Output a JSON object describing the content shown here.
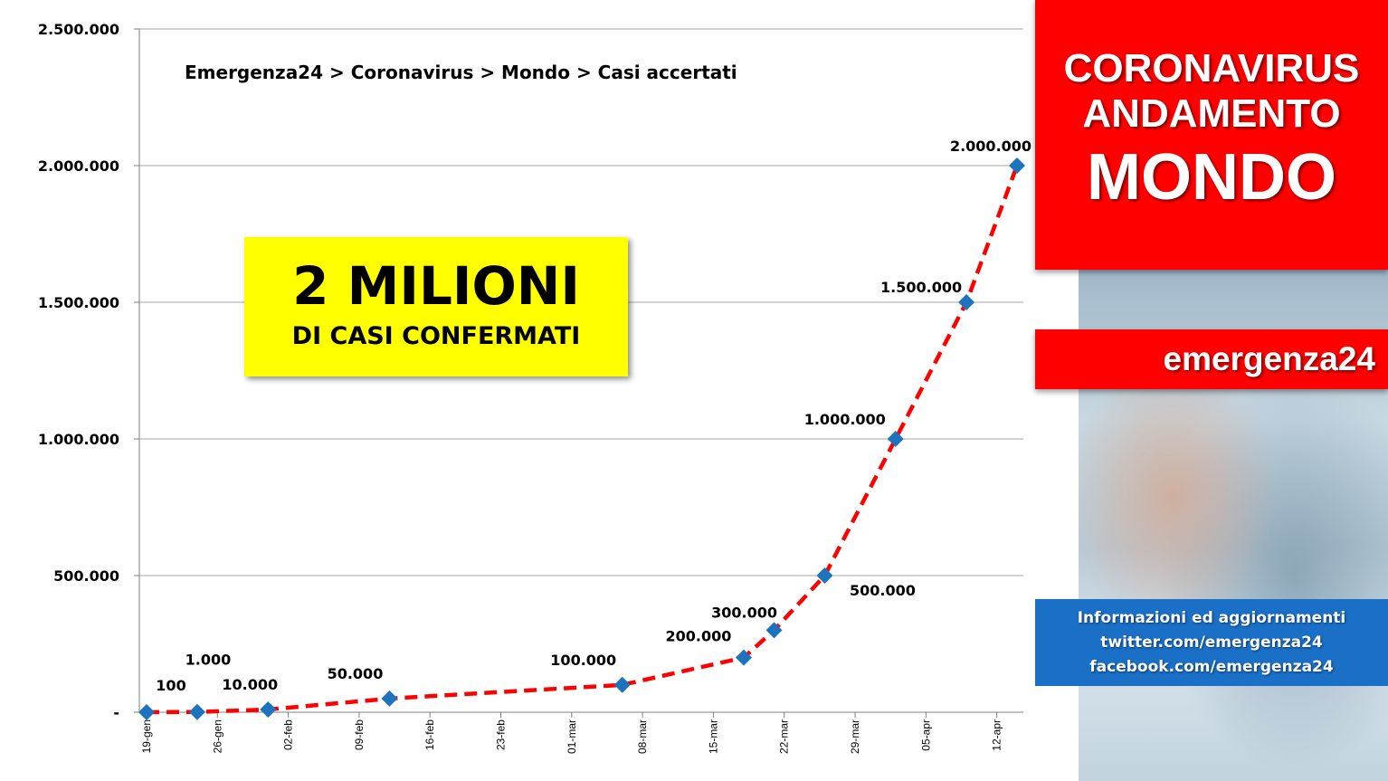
{
  "breadcrumb": "Emergenza24 > Coronavirus >  Mondo > Casi accertati",
  "highlight": {
    "big": "2 MILIONI",
    "small": "DI CASI CONFERMATI"
  },
  "side": {
    "title_line1": "CORONAVIRUS",
    "title_line2": "ANDAMENTO",
    "title_line3": "MONDO",
    "brand": "emergenza24",
    "info": [
      "Informazioni ed aggiornamenti",
      "twitter.com/emergenza24",
      "facebook.com/emergenza24"
    ]
  },
  "colors": {
    "line": "#ff0000",
    "marker": "#1e73be",
    "grid": "#a6a6a6",
    "highlight": "#ffff00",
    "panel": "#ff0000",
    "info": "#1a6fc6"
  },
  "chart_data": {
    "type": "line",
    "title": "",
    "xlabel": "",
    "ylabel": "",
    "ylim": [
      0,
      2500000
    ],
    "grid": true,
    "y_ticks": [
      {
        "value": 0,
        "label": "-"
      },
      {
        "value": 500000,
        "label": "500.000"
      },
      {
        "value": 1000000,
        "label": "1.000.000"
      },
      {
        "value": 1500000,
        "label": "1.500.000"
      },
      {
        "value": 2000000,
        "label": "2.000.000"
      },
      {
        "value": 2500000,
        "label": "2.500.000"
      }
    ],
    "x_range_days": [
      0,
      87
    ],
    "x_ticks": [
      {
        "day": 0,
        "label": "19-gen"
      },
      {
        "day": 7,
        "label": "26-gen"
      },
      {
        "day": 14,
        "label": "02-feb"
      },
      {
        "day": 21,
        "label": "09-feb"
      },
      {
        "day": 28,
        "label": "16-feb"
      },
      {
        "day": 35,
        "label": "23-feb"
      },
      {
        "day": 42,
        "label": "01-mar"
      },
      {
        "day": 49,
        "label": "08-mar"
      },
      {
        "day": 56,
        "label": "15-mar"
      },
      {
        "day": 63,
        "label": "22-mar"
      },
      {
        "day": 70,
        "label": "29-mar"
      },
      {
        "day": 77,
        "label": "05-apr"
      },
      {
        "day": 84,
        "label": "12-apr"
      }
    ],
    "series": [
      {
        "points": [
          {
            "day": 0,
            "value": 100,
            "label": "100"
          },
          {
            "day": 5,
            "value": 1000,
            "label": "1.000"
          },
          {
            "day": 12,
            "value": 10000,
            "label": "10.000"
          },
          {
            "day": 24,
            "value": 50000,
            "label": "50.000"
          },
          {
            "day": 47,
            "value": 100000,
            "label": "100.000"
          },
          {
            "day": 59,
            "value": 200000,
            "label": "200.000"
          },
          {
            "day": 62,
            "value": 300000,
            "label": "300.000"
          },
          {
            "day": 67,
            "value": 500000,
            "label": "500.000"
          },
          {
            "day": 74,
            "value": 1000000,
            "label": "1.000.000"
          },
          {
            "day": 81,
            "value": 1500000,
            "label": "1.500.000"
          },
          {
            "day": 86,
            "value": 2000000,
            "label": "2.000.000"
          }
        ]
      }
    ]
  }
}
